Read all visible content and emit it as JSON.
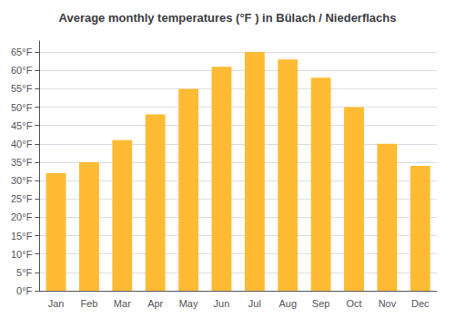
{
  "chart_data": {
    "type": "bar",
    "title": "Average monthly temperatures (°F ) in Bülach / Niederflachs",
    "categories": [
      "Jan",
      "Feb",
      "Mar",
      "Apr",
      "May",
      "Jun",
      "Jul",
      "Aug",
      "Sep",
      "Oct",
      "Nov",
      "Dec"
    ],
    "values": [
      32,
      35,
      41,
      48,
      55,
      61,
      65,
      63,
      58,
      50,
      40,
      34
    ],
    "color": "#FFBB33",
    "ylim": [
      0,
      68
    ],
    "yticks": [
      {
        "value": 0,
        "label": "0°F"
      },
      {
        "value": 5,
        "label": "5°F"
      },
      {
        "value": 10,
        "label": "10°F"
      },
      {
        "value": 15,
        "label": "15°F"
      },
      {
        "value": 20,
        "label": "20°F"
      },
      {
        "value": 25,
        "label": "25°F"
      },
      {
        "value": 30,
        "label": "30°F"
      },
      {
        "value": 35,
        "label": "35°F"
      },
      {
        "value": 40,
        "label": "40°F"
      },
      {
        "value": 45,
        "label": "45°F"
      },
      {
        "value": 50,
        "label": "50°F"
      },
      {
        "value": 55,
        "label": "55°F"
      },
      {
        "value": 60,
        "label": "60°F"
      },
      {
        "value": 65,
        "label": "65°F"
      }
    ],
    "grid": true
  }
}
